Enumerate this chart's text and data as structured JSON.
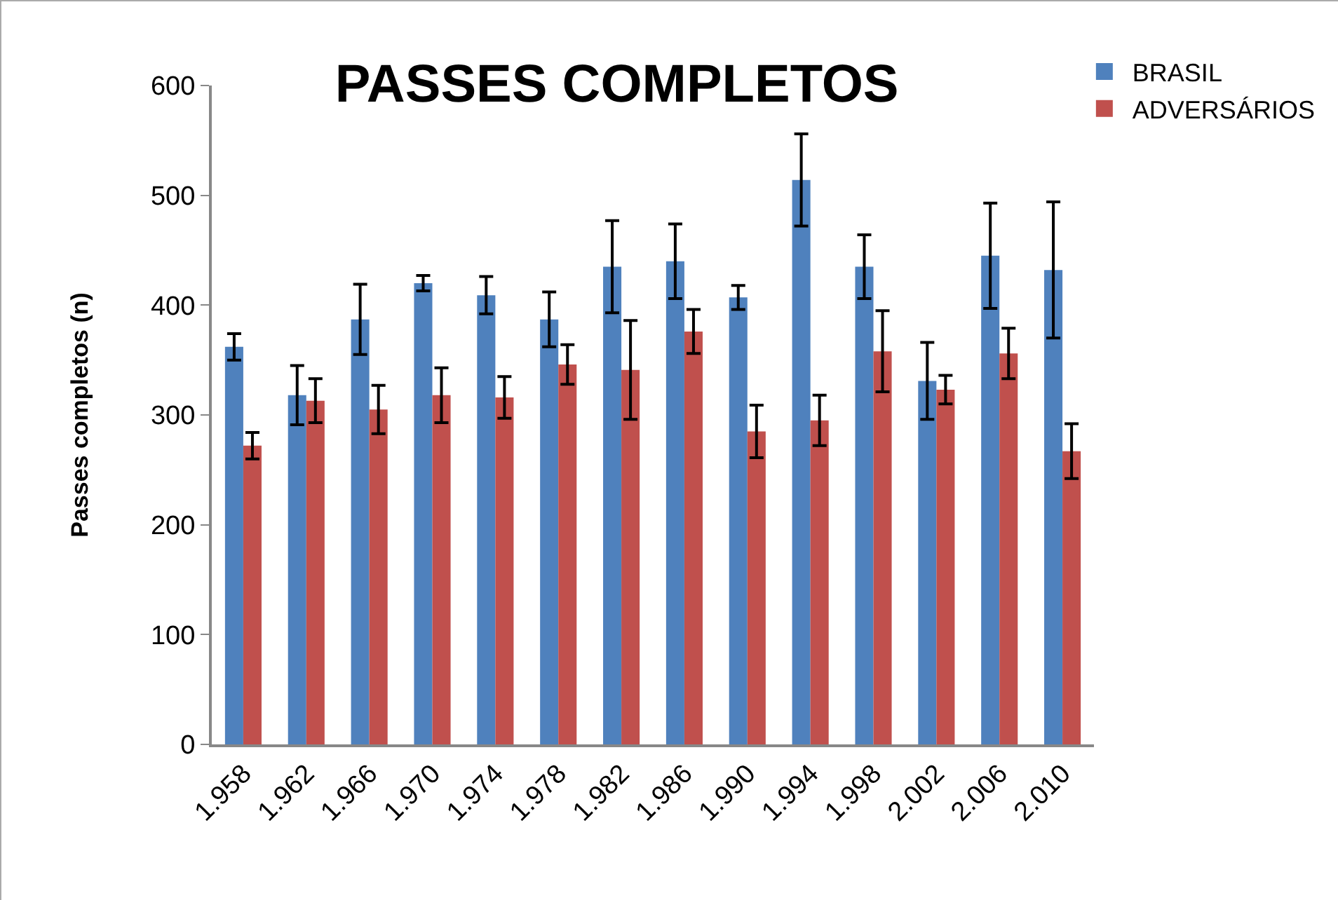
{
  "chart_data": {
    "type": "bar",
    "title": "PASSES COMPLETOS",
    "ylabel": "Passes completos (n)",
    "categories": [
      "1.958",
      "1.962",
      "1.966",
      "1.970",
      "1.974",
      "1.978",
      "1.982",
      "1.986",
      "1.990",
      "1.994",
      "1.998",
      "2.002",
      "2.006",
      "2.010"
    ],
    "series": [
      {
        "name": "BRASIL",
        "color": "#4f81bd",
        "values": [
          362,
          318,
          387,
          420,
          409,
          387,
          435,
          440,
          407,
          514,
          435,
          331,
          445,
          432
        ],
        "errors": [
          12,
          27,
          32,
          7,
          17,
          25,
          42,
          34,
          11,
          42,
          29,
          35,
          48,
          62
        ]
      },
      {
        "name": "ADVERSÁRIOS",
        "color": "#c0504d",
        "values": [
          272,
          313,
          305,
          318,
          316,
          346,
          341,
          376,
          285,
          295,
          358,
          323,
          356,
          267
        ],
        "errors": [
          12,
          20,
          22,
          25,
          19,
          18,
          45,
          20,
          24,
          23,
          37,
          13,
          23,
          25
        ]
      }
    ],
    "ylim": [
      0,
      600
    ],
    "yticks": [
      0,
      100,
      200,
      300,
      400,
      500,
      600
    ],
    "grid": false,
    "legend": "top right"
  }
}
